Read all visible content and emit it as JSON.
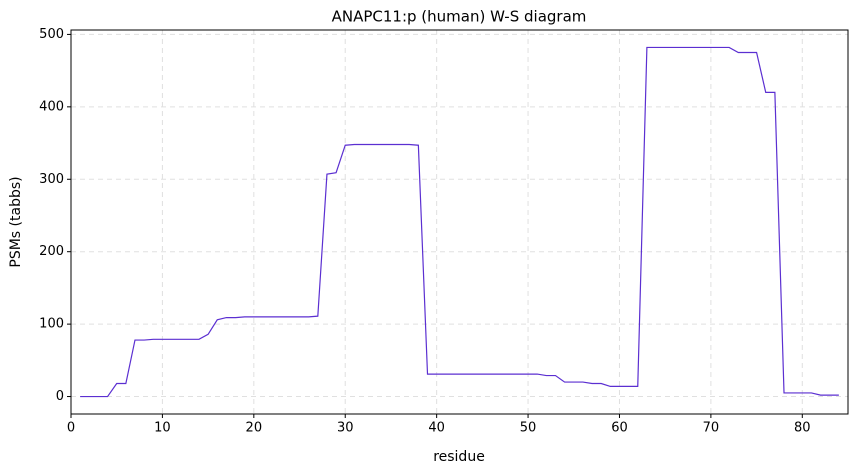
{
  "chart_data": {
    "type": "line",
    "title": "ANAPC11:p (human) W-S diagram",
    "x_label": "residue",
    "y_label": "PSMs (tabbs)",
    "x": [
      1,
      2,
      3,
      4,
      5,
      6,
      7,
      8,
      9,
      10,
      11,
      12,
      13,
      14,
      15,
      16,
      17,
      18,
      19,
      20,
      21,
      22,
      23,
      24,
      25,
      26,
      27,
      28,
      29,
      30,
      31,
      32,
      33,
      34,
      35,
      36,
      37,
      38,
      39,
      40,
      41,
      42,
      43,
      44,
      45,
      46,
      47,
      48,
      49,
      50,
      51,
      52,
      53,
      54,
      55,
      56,
      57,
      58,
      59,
      60,
      61,
      62,
      63,
      64,
      65,
      66,
      67,
      68,
      69,
      70,
      71,
      72,
      73,
      74,
      75,
      76,
      77,
      78,
      79,
      80,
      81,
      82,
      83,
      84
    ],
    "series": [
      {
        "name": "PSMs",
        "color": "#5b2fd1",
        "values": [
          0,
          0,
          0,
          0,
          18,
          18,
          78,
          78,
          79,
          79,
          79,
          79,
          79,
          79,
          86,
          106,
          109,
          109,
          110,
          110,
          110,
          110,
          110,
          110,
          110,
          110,
          111,
          307,
          309,
          347,
          348,
          348,
          348,
          348,
          348,
          348,
          348,
          347,
          31,
          31,
          31,
          31,
          31,
          31,
          31,
          31,
          31,
          31,
          31,
          31,
          31,
          29,
          29,
          20,
          20,
          20,
          18,
          18,
          14,
          14,
          14,
          14,
          482,
          482,
          482,
          482,
          482,
          482,
          482,
          482,
          482,
          482,
          475,
          475,
          475,
          420,
          420,
          5,
          5,
          5,
          5,
          2,
          2,
          2
        ]
      }
    ],
    "xlim": [
      0,
      85
    ],
    "ylim": [
      -24.1,
      506.1
    ],
    "xticks": [
      0,
      10,
      20,
      30,
      40,
      50,
      60,
      70,
      80
    ],
    "yticks": [
      0,
      100,
      200,
      300,
      400,
      500
    ],
    "grid": true
  }
}
